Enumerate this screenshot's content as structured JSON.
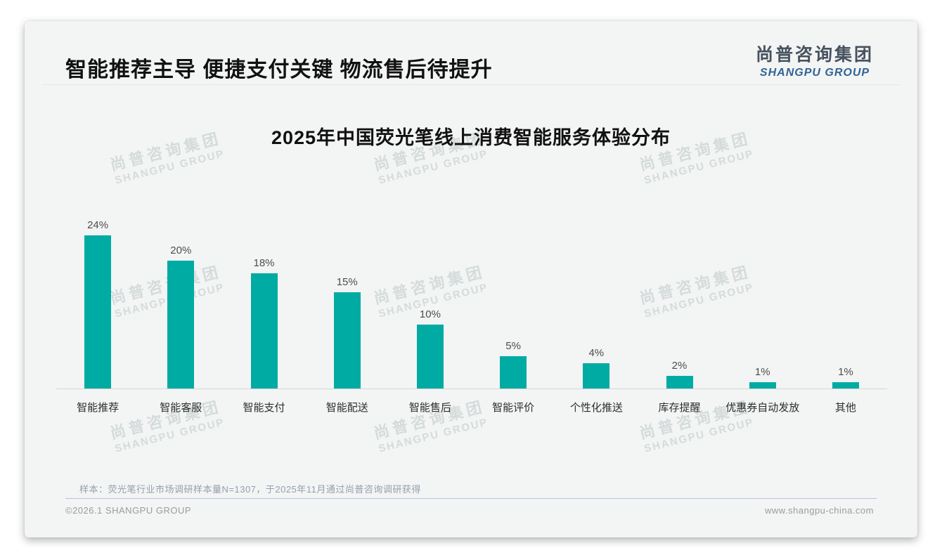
{
  "header": {
    "title": "智能推荐主导 便捷支付关键 物流售后待提升",
    "logo_cn": "尚普咨询集团",
    "logo_en": "SHANGPU GROUP"
  },
  "watermark": {
    "line1": "尚普咨询集团",
    "line2": "SHANGPU GROUP"
  },
  "chart_data": {
    "type": "bar",
    "title": "2025年中国荧光笔线上消费智能服务体验分布",
    "categories": [
      "智能推荐",
      "智能客服",
      "智能支付",
      "智能配送",
      "智能售后",
      "智能评价",
      "个性化推送",
      "库存提醒",
      "优惠券自动发放",
      "其他"
    ],
    "values": [
      24,
      20,
      18,
      15,
      10,
      5,
      4,
      2,
      1,
      1
    ],
    "value_labels": [
      "24%",
      "20%",
      "18%",
      "15%",
      "10%",
      "5%",
      "4%",
      "2%",
      "1%",
      "1%"
    ],
    "unit": "%",
    "xlabel": "",
    "ylabel": "",
    "ylim": [
      0,
      25
    ],
    "grid": false,
    "legend": false,
    "bar_color": "#00aba3",
    "label_position": "above-bars"
  },
  "footer": {
    "note": "样本：荧光笔行业市场调研样本量N=1307，于2025年11月通过尚普咨询调研获得",
    "copyright": "©2026.1 SHANGPU GROUP",
    "website": "www.shangpu-china.com"
  },
  "colors": {
    "bar": "#00aba3",
    "card_background": "#f3f4f4",
    "logo_cn": "#46525e",
    "logo_en": "#2f6496",
    "note_text": "#93a0ae",
    "footer_text": "#9b9b9b"
  }
}
